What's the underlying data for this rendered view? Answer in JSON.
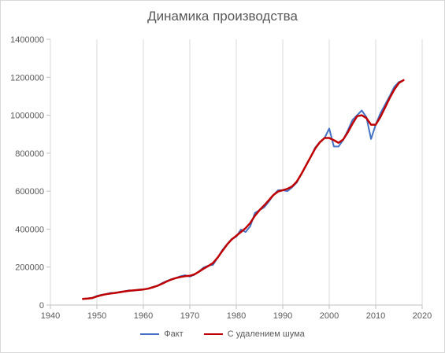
{
  "chart_data": {
    "type": "line",
    "title": "Динамика производства",
    "xlabel": "",
    "ylabel": "",
    "xlim": [
      1940,
      2020
    ],
    "ylim": [
      0,
      1400000
    ],
    "x_ticks": [
      1940,
      1950,
      1960,
      1970,
      1980,
      1990,
      2000,
      2010,
      2020
    ],
    "y_ticks": [
      0,
      200000,
      400000,
      600000,
      800000,
      1000000,
      1200000,
      1400000
    ],
    "grid": "vertical",
    "legend_position": "bottom",
    "x": [
      1947,
      1948,
      1949,
      1950,
      1951,
      1952,
      1953,
      1954,
      1955,
      1956,
      1957,
      1958,
      1959,
      1960,
      1961,
      1962,
      1963,
      1964,
      1965,
      1966,
      1967,
      1968,
      1969,
      1970,
      1971,
      1972,
      1973,
      1974,
      1975,
      1976,
      1977,
      1978,
      1979,
      1980,
      1981,
      1982,
      1983,
      1984,
      1985,
      1986,
      1987,
      1988,
      1989,
      1990,
      1991,
      1992,
      1993,
      1994,
      1995,
      1996,
      1997,
      1998,
      1999,
      2000,
      2001,
      2002,
      2003,
      2004,
      2005,
      2006,
      2007,
      2008,
      2009,
      2010,
      2011,
      2012,
      2013,
      2014,
      2015,
      2016
    ],
    "series": [
      {
        "name": "Факт",
        "color": "#4472c4",
        "values": [
          33000,
          35000,
          38000,
          48000,
          54000,
          58000,
          64000,
          63000,
          70000,
          73000,
          78000,
          76000,
          81000,
          83000,
          86000,
          95000,
          102000,
          115000,
          126000,
          136000,
          143000,
          152000,
          157000,
          150000,
          160000,
          178000,
          198000,
          208000,
          212000,
          250000,
          290000,
          320000,
          348000,
          360000,
          398000,
          385000,
          415000,
          485000,
          500000,
          515000,
          545000,
          580000,
          605000,
          605000,
          600000,
          620000,
          645000,
          690000,
          735000,
          780000,
          830000,
          860000,
          880000,
          930000,
          835000,
          835000,
          870000,
          920000,
          975000,
          1000000,
          1025000,
          990000,
          875000,
          950000,
          1010000,
          1055000,
          1100000,
          1150000,
          1175000,
          1185000
        ]
      },
      {
        "name": "С удалением шума",
        "color": "#c00000",
        "values": [
          32000,
          34000,
          37000,
          45000,
          52000,
          57000,
          61000,
          64000,
          68000,
          72000,
          75000,
          78000,
          80000,
          82000,
          86000,
          93000,
          101000,
          112000,
          124000,
          134000,
          142000,
          148000,
          152000,
          154000,
          162000,
          176000,
          192000,
          206000,
          222000,
          250000,
          285000,
          318000,
          345000,
          365000,
          385000,
          405000,
          432000,
          470000,
          500000,
          525000,
          552000,
          580000,
          598000,
          605000,
          612000,
          625000,
          650000,
          690000,
          735000,
          780000,
          825000,
          858000,
          880000,
          880000,
          868000,
          855000,
          872000,
          910000,
          955000,
          995000,
          1000000,
          985000,
          950000,
          950000,
          990000,
          1040000,
          1090000,
          1135000,
          1170000,
          1185000
        ]
      }
    ]
  }
}
